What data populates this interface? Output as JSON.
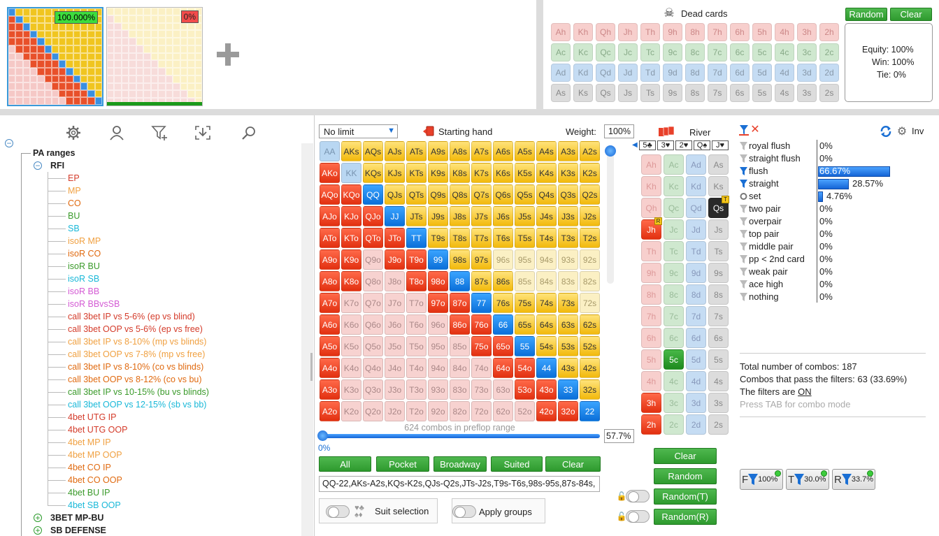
{
  "thumbs": {
    "first_pct": "100.000%",
    "second_pct": "0%"
  },
  "dead": {
    "title": "Dead cards",
    "random": "Random",
    "clear": "Clear",
    "rows": [
      {
        "suit": "h",
        "cards": [
          "Ah",
          "Kh",
          "Qh",
          "Jh",
          "Th",
          "9h",
          "8h",
          "7h",
          "6h",
          "5h",
          "4h",
          "3h",
          "2h"
        ]
      },
      {
        "suit": "c",
        "cards": [
          "Ac",
          "Kc",
          "Qc",
          "Jc",
          "Tc",
          "9c",
          "8c",
          "7c",
          "6c",
          "5c",
          "4c",
          "3c",
          "2c"
        ]
      },
      {
        "suit": "d",
        "cards": [
          "Ad",
          "Kd",
          "Qd",
          "Jd",
          "Td",
          "9d",
          "8d",
          "7d",
          "6d",
          "5d",
          "4d",
          "3d",
          "2d"
        ]
      },
      {
        "suit": "s",
        "cards": [
          "As",
          "Ks",
          "Qs",
          "Js",
          "Ts",
          "9s",
          "8s",
          "7s",
          "6s",
          "5s",
          "4s",
          "3s",
          "2s"
        ]
      }
    ],
    "equity": "Equity: 100%",
    "win": "Win: 100%",
    "tie": "Tie: 0%"
  },
  "tree": {
    "root": "PA ranges",
    "rfi": "RFI",
    "items": [
      {
        "label": "EP",
        "color": "#d43b2a"
      },
      {
        "label": "MP",
        "color": "#f0a040"
      },
      {
        "label": "CO",
        "color": "#e06a10"
      },
      {
        "label": "BU",
        "color": "#3a9a2a"
      },
      {
        "label": "SB",
        "color": "#19b8d8"
      },
      {
        "label": "isoR MP",
        "color": "#f0a040"
      },
      {
        "label": "isoR CO",
        "color": "#e06a10"
      },
      {
        "label": "isoR BU",
        "color": "#3a9a2a"
      },
      {
        "label": "isoR SB",
        "color": "#19b8d8"
      },
      {
        "label": "isoR BB",
        "color": "#d45ad4"
      },
      {
        "label": "isoR BBvsSB",
        "color": "#d45ad4"
      },
      {
        "label": "call 3bet IP vs 5-6% (ep vs blind)",
        "color": "#d43b2a"
      },
      {
        "label": "call 3bet OOP vs 5-6% (ep vs free)",
        "color": "#d43b2a"
      },
      {
        "label": "call 3bet IP vs 8-10% (mp vs blinds)",
        "color": "#f0a040"
      },
      {
        "label": "call 3bet OOP vs 7-8% (mp vs free)",
        "color": "#f0a040"
      },
      {
        "label": "call 3bet IP vs 8-10% (co vs blinds)",
        "color": "#e06a10"
      },
      {
        "label": "call 3bet OOP vs 8-12% (co vs bu)",
        "color": "#e06a10"
      },
      {
        "label": "call 3bet IP vs 10-15% (bu vs blinds)",
        "color": "#3a9a2a"
      },
      {
        "label": "call 3bet OOP vs 12-15% (sb vs bb)",
        "color": "#19b8d8"
      },
      {
        "label": "4bet UTG IP",
        "color": "#d43b2a"
      },
      {
        "label": "4bet UTG OOP",
        "color": "#d43b2a"
      },
      {
        "label": "4bet MP IP",
        "color": "#f0a040"
      },
      {
        "label": "4bet MP OOP",
        "color": "#f0a040"
      },
      {
        "label": "4bet CO IP",
        "color": "#e06a10"
      },
      {
        "label": "4bet CO OOP",
        "color": "#e06a10"
      },
      {
        "label": "4bet BU IP",
        "color": "#3a9a2a"
      },
      {
        "label": "4bet SB OOP",
        "color": "#19b8d8"
      }
    ],
    "groups": [
      "3BET MP-BU",
      "SB DEFENSE"
    ]
  },
  "range": {
    "limit": "No limit",
    "starting_hand": "Starting hand",
    "weight_label": "Weight:",
    "weight": "100%",
    "combos_note": "624 combos in preflop range",
    "slider_pct": "57.7%",
    "slider_left": "0%",
    "buttons": [
      "All",
      "Pocket",
      "Broadway",
      "Suited",
      "Clear"
    ],
    "text": "QQ-22,AKs-A2s,KQs-K2s,QJs-Q2s,JTs-J2s,T9s-T6s,98s-95s,87s-84s,",
    "suit_selection": "Suit selection",
    "apply_groups": "Apply groups"
  },
  "river": {
    "label": "River",
    "board": [
      "5♣",
      "3♥",
      "2♥",
      "Q♠",
      "J♥"
    ],
    "clear": "Clear",
    "random": "Random",
    "random_t": "Random(T)",
    "random_r": "Random(R)"
  },
  "stats": {
    "inv": "Inv",
    "rows": [
      {
        "label": "royal flush",
        "pct": "0%",
        "v": 0
      },
      {
        "label": "straight flush",
        "pct": "0%",
        "v": 0
      },
      {
        "label": "flush",
        "pct": "66.67%",
        "v": 0.6667
      },
      {
        "label": "straight",
        "pct": "28.57%",
        "v": 0.2857
      },
      {
        "label": "set",
        "pct": "4.76%",
        "v": 0.0476
      },
      {
        "label": "two pair",
        "pct": "0%",
        "v": 0
      },
      {
        "label": "overpair",
        "pct": "0%",
        "v": 0
      },
      {
        "label": "top pair",
        "pct": "0%",
        "v": 0
      },
      {
        "label": "middle pair",
        "pct": "0%",
        "v": 0
      },
      {
        "label": "pp < 2nd card",
        "pct": "0%",
        "v": 0
      },
      {
        "label": "weak pair",
        "pct": "0%",
        "v": 0
      },
      {
        "label": "ace high",
        "pct": "0%",
        "v": 0
      },
      {
        "label": "nothing",
        "pct": "0%",
        "v": 0
      }
    ],
    "total": "Total number of combos: 187",
    "pass": "Combos that pass the filters: 63 (33.69%)",
    "filters_pre": "The filters are ",
    "filters_on": "ON",
    "tab_hint": "Press TAB for combo mode",
    "chips": [
      {
        "l": "F",
        "v": "100%"
      },
      {
        "l": "T",
        "v": "30.0%"
      },
      {
        "l": "R",
        "v": "33.7%"
      }
    ]
  }
}
